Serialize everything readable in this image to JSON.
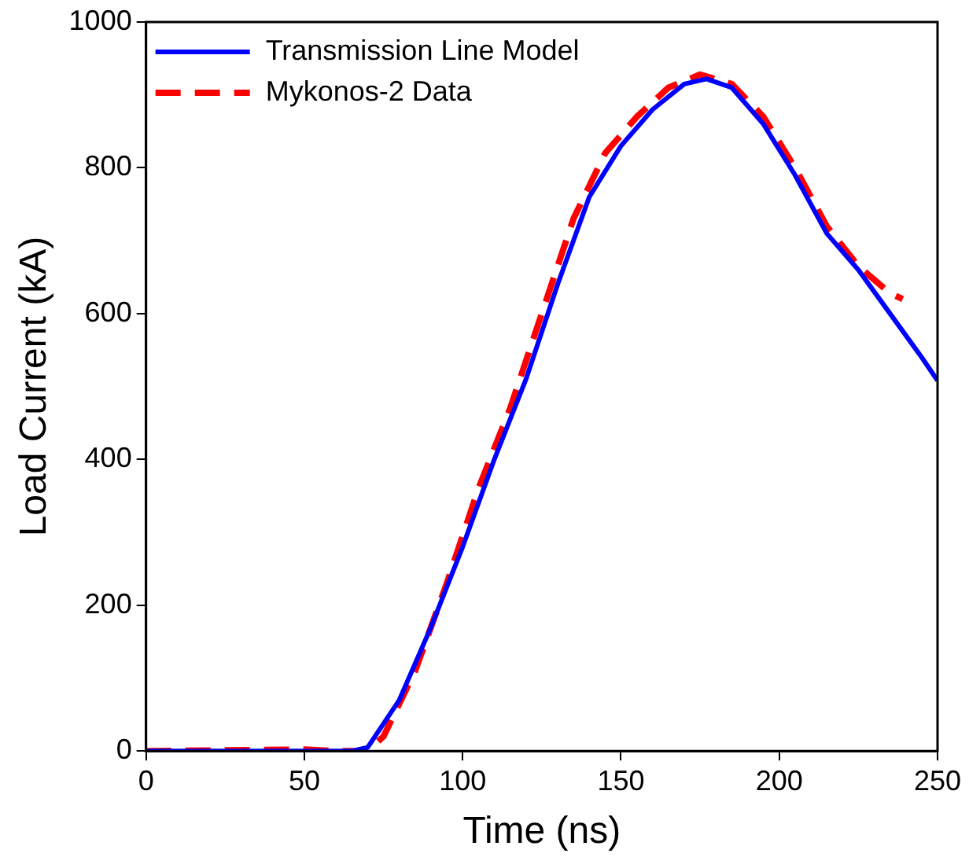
{
  "chart_data": {
    "type": "line",
    "xlabel": "Time (ns)",
    "ylabel": "Load Current (kA)",
    "xlim": [
      0,
      250
    ],
    "xticks": [
      0,
      50,
      100,
      150,
      200,
      250
    ],
    "ylim": [
      0,
      1000
    ],
    "yticks": [
      0,
      200,
      400,
      600,
      800,
      1000
    ],
    "grid": false,
    "legend": "top left",
    "marker": "none",
    "series": [
      {
        "name": "Transmission Line Model",
        "color": "#0000ff",
        "line_style": "solid",
        "x": [
          0,
          65,
          70,
          80,
          90,
          100,
          110,
          120,
          130,
          140,
          150,
          160,
          170,
          177,
          185,
          195,
          205,
          215,
          225,
          235,
          245,
          250
        ],
        "values": [
          0,
          0,
          5,
          70,
          170,
          280,
          400,
          510,
          640,
          760,
          830,
          880,
          915,
          922,
          910,
          860,
          790,
          710,
          660,
          600,
          540,
          508
        ]
      },
      {
        "name": "Mykonos-2 Data",
        "color": "#ff0000",
        "line_style": "dashed",
        "x": [
          0,
          50,
          60,
          70,
          75,
          85,
          95,
          105,
          115,
          125,
          135,
          145,
          155,
          165,
          175,
          185,
          195,
          205,
          215,
          225,
          235,
          239
        ],
        "values": [
          0,
          2,
          0,
          0,
          20,
          110,
          230,
          360,
          470,
          600,
          730,
          820,
          870,
          910,
          928,
          915,
          870,
          800,
          720,
          665,
          628,
          620
        ]
      }
    ]
  }
}
